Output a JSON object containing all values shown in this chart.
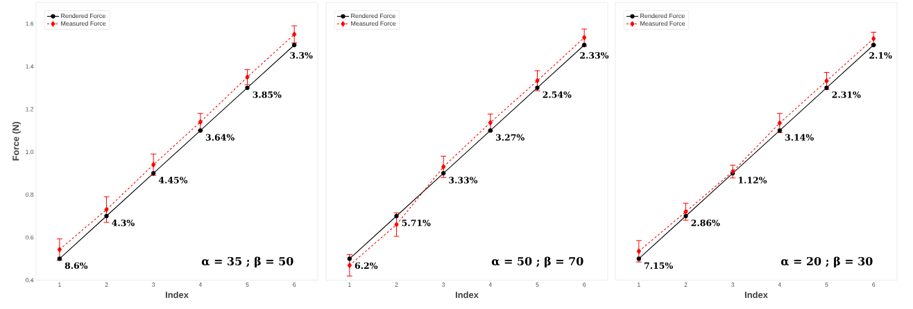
{
  "chart_data": [
    {
      "type": "line",
      "xlabel": "Index",
      "ylabel": "Force (N)",
      "x": [
        1,
        2,
        3,
        4,
        5,
        6
      ],
      "xlim": [
        0.5,
        6.5
      ],
      "xticks": [
        1,
        2,
        3,
        4,
        5,
        6
      ],
      "ylim": [
        0.4,
        1.7
      ],
      "yticks": [
        0.4,
        0.6,
        0.8,
        {
          "value": 1,
          "label": "1.0"
        },
        1.2,
        1.4,
        1.6
      ],
      "legend": "top left",
      "grid": false,
      "series": [
        {
          "name": "Rendered Force",
          "color": "#000000",
          "marker": "circle",
          "line_style": "solid",
          "values": [
            0.5,
            0.7,
            0.9,
            1.1,
            1.3,
            1.5
          ]
        },
        {
          "name": "Measured Force",
          "color": "#ff0000",
          "marker": "diamond",
          "line_style": "dashed",
          "values": [
            0.543,
            0.73,
            0.94,
            1.14,
            1.35,
            1.55
          ],
          "errors": [
            0.05,
            0.06,
            0.05,
            0.04,
            0.035,
            0.04
          ]
        }
      ],
      "annotations": [
        {
          "text": "8.6%",
          "x": 1,
          "y": 0.5
        },
        {
          "text": "4.3%",
          "x": 2,
          "y": 0.7
        },
        {
          "text": "4.45%",
          "x": 3,
          "y": 0.9
        },
        {
          "text": "3.64%",
          "x": 4,
          "y": 1.1
        },
        {
          "text": "3.85%",
          "x": 5,
          "y": 1.3
        },
        {
          "text": "3.3%",
          "x": 6,
          "y": 1.5
        },
        "α = 35 ;  β = 50"
      ]
    },
    {
      "type": "line",
      "xlabel": "Index",
      "x": [
        1,
        2,
        3,
        4,
        5,
        6
      ],
      "xlim": [
        0.5,
        6.5
      ],
      "xticks": [
        1,
        2,
        3,
        4,
        5,
        6
      ],
      "ylim": [
        0.4,
        1.7
      ],
      "tick_labels": "x",
      "legend": "top left",
      "grid": false,
      "series": [
        {
          "name": "Rendered Force",
          "color": "#000000",
          "marker": "circle",
          "line_style": "solid",
          "values": [
            0.5,
            0.7,
            0.9,
            1.1,
            1.3,
            1.5
          ]
        },
        {
          "name": "Measured Force",
          "color": "#ff0000",
          "marker": "diamond",
          "line_style": "dashed",
          "values": [
            0.469,
            0.66,
            0.93,
            1.137,
            1.333,
            1.535
          ],
          "errors": [
            0.05,
            0.055,
            0.05,
            0.04,
            0.047,
            0.04
          ]
        }
      ],
      "annotations": [
        {
          "text": "6.2%",
          "x": 1,
          "y": 0.5
        },
        {
          "text": "5.71%",
          "x": 2,
          "y": 0.7
        },
        {
          "text": "3.33%",
          "x": 3,
          "y": 0.9
        },
        {
          "text": "3.27%",
          "x": 4,
          "y": 1.1
        },
        {
          "text": "2.54%",
          "x": 5,
          "y": 1.3
        },
        {
          "text": "2.33%",
          "x": 6,
          "y": 1.5
        },
        "α = 50 ;  β = 70"
      ]
    },
    {
      "type": "line",
      "xlabel": "Index",
      "x": [
        1,
        2,
        3,
        4,
        5,
        6
      ],
      "xlim": [
        0.5,
        6.5
      ],
      "xticks": [
        1,
        2,
        3,
        4,
        5,
        6
      ],
      "ylim": [
        0.4,
        1.7
      ],
      "tick_labels": "x",
      "legend": "top left",
      "grid": false,
      "series": [
        {
          "name": "Rendered Force",
          "color": "#000000",
          "marker": "circle",
          "line_style": "solid",
          "values": [
            0.5,
            0.7,
            0.9,
            1.1,
            1.3,
            1.5
          ]
        },
        {
          "name": "Measured Force",
          "color": "#ff0000",
          "marker": "diamond",
          "line_style": "dashed",
          "values": [
            0.535,
            0.72,
            0.908,
            1.135,
            1.332,
            1.53
          ],
          "errors": [
            0.05,
            0.04,
            0.03,
            0.045,
            0.04,
            0.03
          ]
        }
      ],
      "annotations": [
        {
          "text": "7.15%",
          "x": 1,
          "y": 0.5
        },
        {
          "text": "2.86%",
          "x": 2,
          "y": 0.7
        },
        {
          "text": "1.12%",
          "x": 3,
          "y": 0.9
        },
        {
          "text": "3.14%",
          "x": 4,
          "y": 1.1
        },
        {
          "text": "2.31%",
          "x": 5,
          "y": 1.3
        },
        {
          "text": "2.1%",
          "x": 6,
          "y": 1.5
        },
        "α = 20 ;  β = 30"
      ]
    }
  ]
}
